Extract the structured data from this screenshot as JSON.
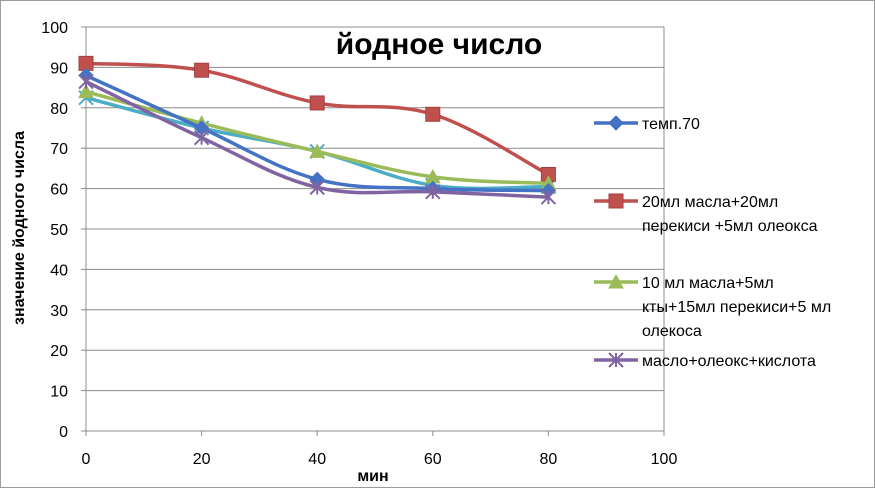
{
  "chart_data": {
    "type": "line",
    "title": "йодное число",
    "xlabel": "мин",
    "ylabel": "значение йодного числа",
    "xlim": [
      0,
      100
    ],
    "ylim": [
      0,
      100
    ],
    "x_ticks": [
      "0",
      "20",
      "40",
      "60",
      "80",
      "100"
    ],
    "y_ticks": [
      "0",
      "10",
      "20",
      "30",
      "40",
      "50",
      "60",
      "70",
      "80",
      "90",
      "100"
    ],
    "grid": "horizontal",
    "legend_position": "right",
    "x": [
      0,
      20,
      40,
      60,
      80
    ],
    "series": [
      {
        "name": "темп.70",
        "values": [
          88,
          75,
          62.3,
          60,
          59.5
        ],
        "color": "#4472c4",
        "marker": "diamond"
      },
      {
        "name": "20мл масла+20мл перекиси +5мл олеокса",
        "legend_lines": [
          "20мл масла+20мл",
          "перекиси +5мл олеокса"
        ],
        "values": [
          91,
          89.3,
          81.2,
          78.4,
          63.5
        ],
        "color": "#c0504d",
        "marker": "square"
      },
      {
        "name": "10 мл масла+5мл кты+15мл перекиси+5 мл олекоса",
        "legend_lines": [
          "10 мл масла+5мл",
          "кты+15мл перекиси+5 мл",
          "олекоса"
        ],
        "values": [
          84,
          76.2,
          69.2,
          62.9,
          61.3
        ],
        "color": "#9bbb59",
        "marker": "triangle"
      },
      {
        "name": "масло+олеокс+кислота",
        "values": [
          86.5,
          72.6,
          60.3,
          59.2,
          57.9
        ],
        "color": "#8064a2",
        "marker": "star"
      },
      {
        "name": "",
        "values": [
          82.5,
          75,
          69.2,
          60.8,
          60.5
        ],
        "color": "#4bacc6",
        "marker": "x"
      }
    ]
  }
}
